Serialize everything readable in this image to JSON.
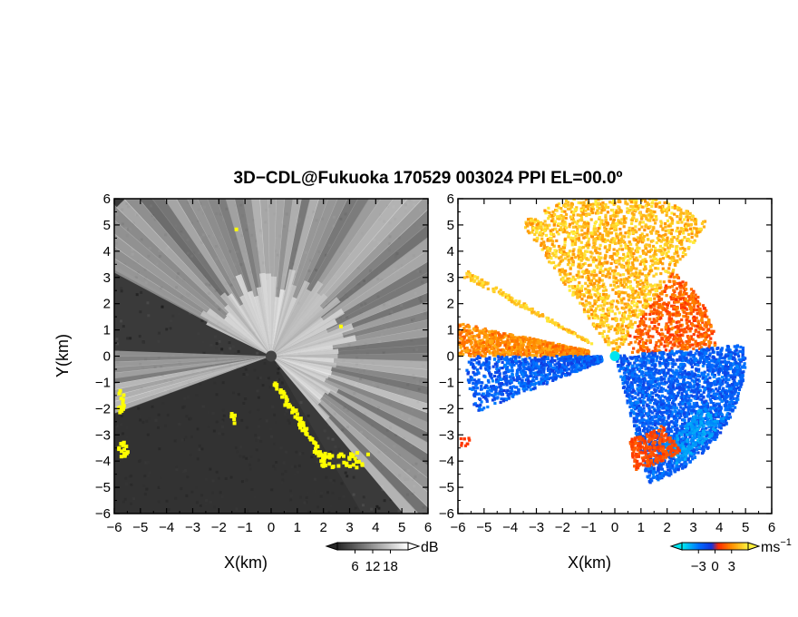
{
  "title": "3D−CDL@Fukuoka 170529 003024 PPI EL=00.0º",
  "chart_data": [
    {
      "type": "heatmap",
      "panel": "left",
      "quantity": "signal intensity",
      "xlabel": "X(km)",
      "ylabel": "Y(km)",
      "xlim": [
        -6,
        6
      ],
      "ylim": [
        -6,
        6
      ],
      "xticks": [
        "−6",
        "−5",
        "−4",
        "−3",
        "−2",
        "−1",
        "0",
        "1",
        "2",
        "3",
        "4",
        "5",
        "6"
      ],
      "yticks": [
        "6",
        "5",
        "4",
        "3",
        "2",
        "1",
        "0",
        "−1",
        "−2",
        "−3",
        "−4",
        "−5",
        "−6"
      ],
      "colorbar": {
        "unit": "dB",
        "ticks": [
          "6",
          "12",
          "18"
        ],
        "range": [
          0,
          24
        ],
        "colormap": "grayscale"
      },
      "flag_color": "#ffff00",
      "radar_origin": [
        0,
        0
      ]
    },
    {
      "type": "heatmap",
      "panel": "right",
      "quantity": "Doppler velocity",
      "xlabel": "X(km)",
      "ylabel": "",
      "xlim": [
        -6,
        6
      ],
      "ylim": [
        -6,
        6
      ],
      "xticks": [
        "−6",
        "−5",
        "−4",
        "−3",
        "−2",
        "−1",
        "0",
        "1",
        "2",
        "3",
        "4",
        "5",
        "6"
      ],
      "yticks": [
        "6",
        "5",
        "4",
        "3",
        "2",
        "1",
        "0",
        "−1",
        "−2",
        "−3",
        "−4",
        "−5",
        "−6"
      ],
      "colorbar": {
        "unit": "ms",
        "unit_exponent": "−1",
        "ticks": [
          "−3",
          "0",
          "3"
        ],
        "range": [
          -5,
          5
        ],
        "colormap": "cyan-blue-red-yellow"
      },
      "radar_origin": [
        0,
        0
      ]
    }
  ]
}
